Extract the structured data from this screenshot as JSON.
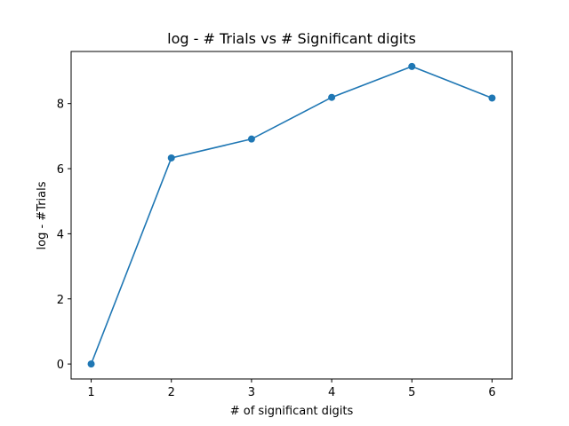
{
  "chart_data": {
    "type": "line",
    "title": "log - # Trials vs # Significant digits",
    "xlabel": "# of significant digits",
    "ylabel": "log - #Trials",
    "x": [
      1,
      2,
      3,
      4,
      5,
      6
    ],
    "y": [
      0.0,
      6.33,
      6.91,
      8.19,
      9.14,
      8.17
    ],
    "xlim": [
      0.75,
      6.25
    ],
    "ylim": [
      -0.46,
      9.6
    ],
    "xticks": [
      1,
      2,
      3,
      4,
      5,
      6
    ],
    "yticks": [
      0,
      2,
      4,
      6,
      8
    ],
    "grid": false,
    "marker": "circle",
    "color": "#1f77b4"
  }
}
